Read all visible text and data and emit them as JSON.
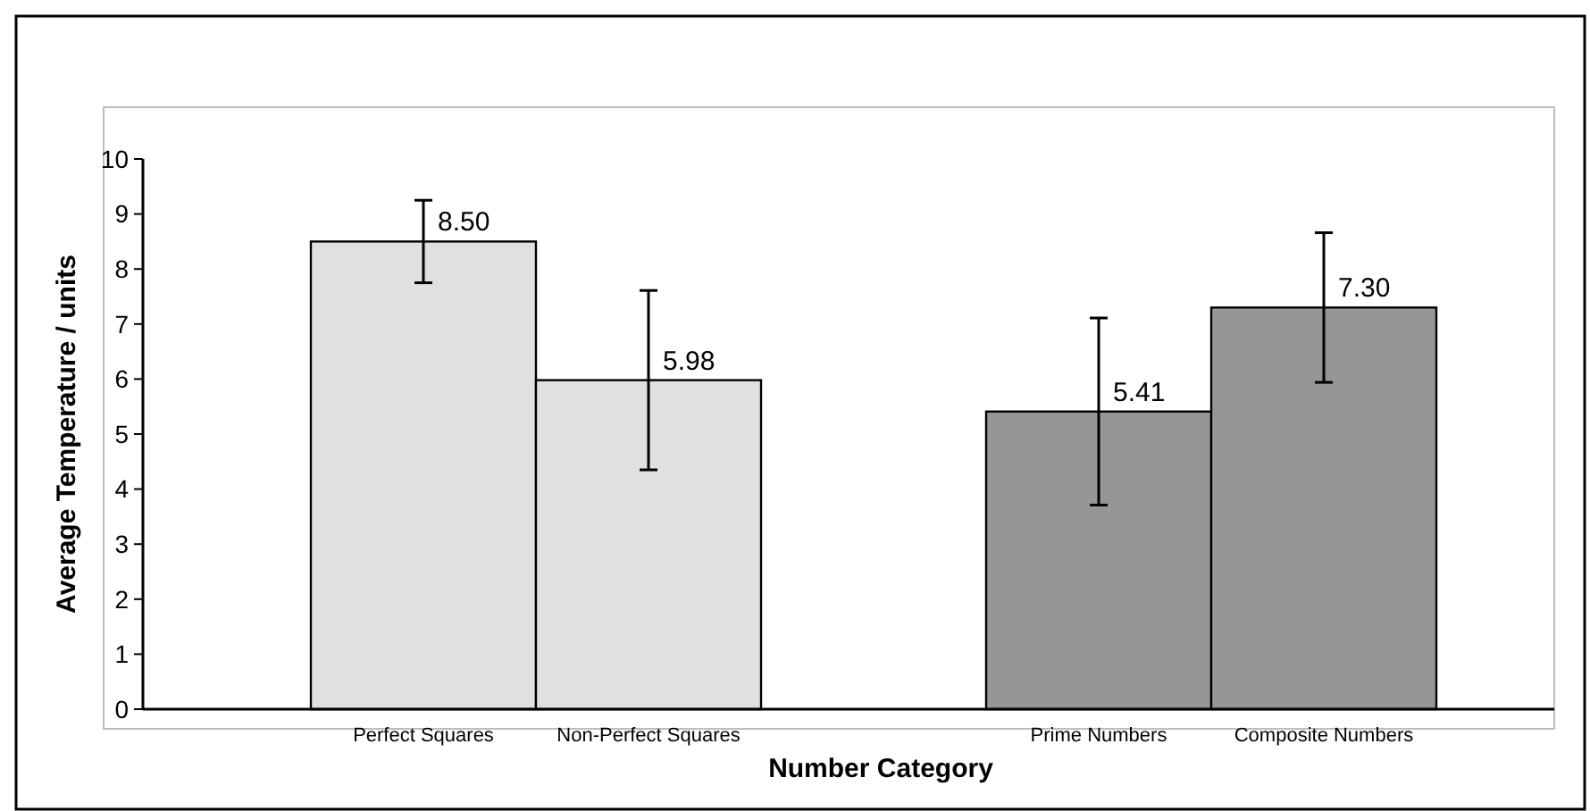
{
  "chart_data": {
    "type": "bar",
    "xlabel": "Number Category",
    "ylabel": "Average Temperature / units",
    "categories": [
      "Perfect Squares",
      "Non-Perfect Squares",
      null,
      "Prime Numbers",
      "Composite Numbers"
    ],
    "values": [
      8.5,
      5.98,
      null,
      5.41,
      7.3
    ],
    "colors": [
      "#e0e0e0",
      "#e0e0e0",
      null,
      "#969696",
      "#969696"
    ],
    "errors": [
      0.75,
      1.63,
      null,
      1.7,
      1.36
    ],
    "value_labels": [
      "8.50",
      "5.98",
      null,
      "5.41",
      "7.30"
    ],
    "ylim": [
      0,
      10
    ],
    "yticks": [
      0,
      1,
      2,
      3,
      4,
      5,
      6,
      7,
      8,
      9,
      10
    ],
    "grid": false
  }
}
